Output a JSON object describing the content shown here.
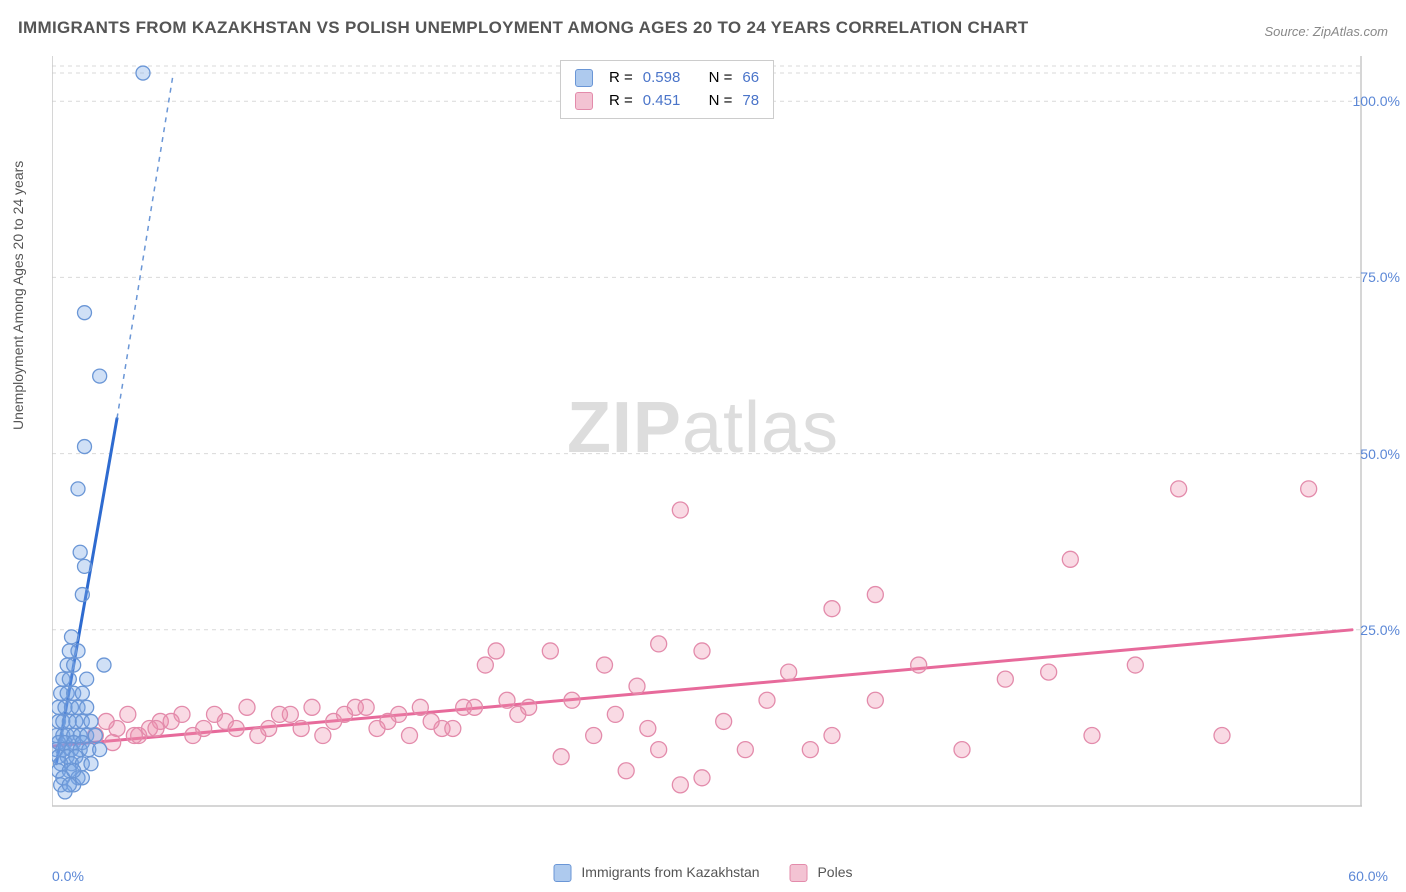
{
  "title": "IMMIGRANTS FROM KAZAKHSTAN VS POLISH UNEMPLOYMENT AMONG AGES 20 TO 24 YEARS CORRELATION CHART",
  "source": "Source: ZipAtlas.com",
  "y_axis_label": "Unemployment Among Ages 20 to 24 years",
  "watermark_a": "ZIP",
  "watermark_b": "atlas",
  "chart": {
    "type": "scatter",
    "background_color": "#ffffff",
    "grid_color": "#d9d9d9",
    "axis_color": "#c8c8c8",
    "xlim": [
      0,
      60
    ],
    "ylim": [
      0,
      105
    ],
    "y_ticks": [
      25,
      50,
      75,
      100
    ],
    "y_tick_labels": [
      "25.0%",
      "50.0%",
      "75.0%",
      "100.0%"
    ],
    "x_tick_min": "0.0%",
    "x_tick_max": "60.0%",
    "series": [
      {
        "name": "Immigrants from Kazakhstan",
        "legend_label": "Immigrants from Kazakhstan",
        "color_fill": "rgba(120,165,230,0.35)",
        "color_stroke": "#6a96d6",
        "marker_radius": 7,
        "trend_color": "#2e6bd0",
        "trend_dash_color": "#6a96d6",
        "trend_width": 3,
        "trend_solid": {
          "x1": 0.2,
          "y1": 6,
          "x2": 3.0,
          "y2": 55
        },
        "trend_dash": {
          "x1": 3.0,
          "y1": 55,
          "x2": 5.6,
          "y2": 104
        },
        "R": "0.598",
        "N": "66",
        "swatch_fill": "#aecaee",
        "swatch_stroke": "#6a96d6",
        "points": [
          [
            4.2,
            104
          ],
          [
            1.5,
            70
          ],
          [
            2.2,
            61
          ],
          [
            1.5,
            51
          ],
          [
            1.2,
            45
          ],
          [
            1.3,
            36
          ],
          [
            1.5,
            34
          ],
          [
            1.4,
            30
          ],
          [
            0.9,
            24
          ],
          [
            0.8,
            22
          ],
          [
            1.2,
            22
          ],
          [
            0.7,
            20
          ],
          [
            1.0,
            20
          ],
          [
            2.4,
            20
          ],
          [
            0.5,
            18
          ],
          [
            0.8,
            18
          ],
          [
            1.6,
            18
          ],
          [
            0.4,
            16
          ],
          [
            0.7,
            16
          ],
          [
            1.0,
            16
          ],
          [
            1.4,
            16
          ],
          [
            0.3,
            14
          ],
          [
            0.6,
            14
          ],
          [
            0.9,
            14
          ],
          [
            1.2,
            14
          ],
          [
            1.6,
            14
          ],
          [
            0.3,
            12
          ],
          [
            0.5,
            12
          ],
          [
            0.8,
            12
          ],
          [
            1.1,
            12
          ],
          [
            1.4,
            12
          ],
          [
            1.8,
            12
          ],
          [
            0.2,
            10
          ],
          [
            0.5,
            10
          ],
          [
            0.7,
            10
          ],
          [
            1.0,
            10
          ],
          [
            1.3,
            10
          ],
          [
            1.6,
            10
          ],
          [
            2.0,
            10
          ],
          [
            0.3,
            9
          ],
          [
            0.6,
            9
          ],
          [
            1.0,
            9
          ],
          [
            1.4,
            9
          ],
          [
            0.2,
            8
          ],
          [
            0.5,
            8
          ],
          [
            0.9,
            8
          ],
          [
            1.3,
            8
          ],
          [
            1.7,
            8
          ],
          [
            0.3,
            7
          ],
          [
            0.7,
            7
          ],
          [
            1.1,
            7
          ],
          [
            0.4,
            6
          ],
          [
            0.9,
            6
          ],
          [
            1.4,
            6
          ],
          [
            0.3,
            5
          ],
          [
            0.8,
            5
          ],
          [
            0.5,
            4
          ],
          [
            1.2,
            4
          ],
          [
            0.4,
            3
          ],
          [
            1.0,
            3
          ],
          [
            0.6,
            2
          ],
          [
            1.4,
            4
          ],
          [
            1.8,
            6
          ],
          [
            2.2,
            8
          ],
          [
            1.0,
            5
          ],
          [
            0.8,
            3
          ]
        ]
      },
      {
        "name": "Poles",
        "legend_label": "Poles",
        "color_fill": "rgba(235,140,170,0.32)",
        "color_stroke": "#e38bab",
        "marker_radius": 8,
        "trend_color": "#e76a9b",
        "trend_width": 3,
        "trend_solid": {
          "x1": 0,
          "y1": 8.5,
          "x2": 60,
          "y2": 25
        },
        "R": "0.451",
        "N": "78",
        "swatch_fill": "#f3c3d3",
        "swatch_stroke": "#e38bab",
        "points": [
          [
            52,
            45
          ],
          [
            58,
            45
          ],
          [
            47,
            35
          ],
          [
            38,
            30
          ],
          [
            36,
            28
          ],
          [
            29,
            42
          ],
          [
            28,
            23
          ],
          [
            30,
            22
          ],
          [
            33,
            15
          ],
          [
            34,
            19
          ],
          [
            36,
            10
          ],
          [
            38,
            15
          ],
          [
            40,
            20
          ],
          [
            42,
            8
          ],
          [
            44,
            18
          ],
          [
            46,
            19
          ],
          [
            48,
            10
          ],
          [
            50,
            20
          ],
          [
            54,
            10
          ],
          [
            22,
            14
          ],
          [
            23,
            22
          ],
          [
            24,
            15
          ],
          [
            25,
            10
          ],
          [
            26,
            13
          ],
          [
            27,
            17
          ],
          [
            28,
            8
          ],
          [
            29,
            3
          ],
          [
            30,
            4
          ],
          [
            31,
            12
          ],
          [
            20,
            20
          ],
          [
            21,
            15
          ],
          [
            19,
            14
          ],
          [
            18,
            11
          ],
          [
            17,
            14
          ],
          [
            16,
            13
          ],
          [
            15,
            11
          ],
          [
            14,
            14
          ],
          [
            13,
            12
          ],
          [
            12,
            14
          ],
          [
            11,
            13
          ],
          [
            10,
            11
          ],
          [
            9,
            14
          ],
          [
            8,
            12
          ],
          [
            7,
            11
          ],
          [
            6,
            13
          ],
          [
            5,
            12
          ],
          [
            4,
            10
          ],
          [
            3.5,
            13
          ],
          [
            3,
            11
          ],
          [
            2.5,
            12
          ],
          [
            2,
            10
          ],
          [
            4.5,
            11
          ],
          [
            5.5,
            12
          ],
          [
            6.5,
            10
          ],
          [
            7.5,
            13
          ],
          [
            8.5,
            11
          ],
          [
            9.5,
            10
          ],
          [
            10.5,
            13
          ],
          [
            11.5,
            11
          ],
          [
            12.5,
            10
          ],
          [
            13.5,
            13
          ],
          [
            14.5,
            14
          ],
          [
            15.5,
            12
          ],
          [
            16.5,
            10
          ],
          [
            17.5,
            12
          ],
          [
            18.5,
            11
          ],
          [
            19.5,
            14
          ],
          [
            20.5,
            22
          ],
          [
            25.5,
            20
          ],
          [
            27.5,
            11
          ],
          [
            32,
            8
          ],
          [
            35,
            8
          ],
          [
            26.5,
            5
          ],
          [
            23.5,
            7
          ],
          [
            21.5,
            13
          ],
          [
            2.8,
            9
          ],
          [
            3.8,
            10
          ],
          [
            4.8,
            11
          ]
        ]
      }
    ]
  },
  "stats_labels": {
    "R": "R =",
    "N": "N ="
  }
}
